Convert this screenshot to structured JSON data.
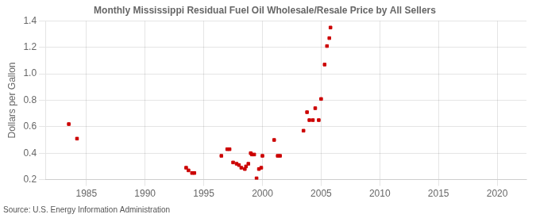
{
  "chart_data": {
    "type": "scatter",
    "title": "Monthly Mississippi Residual Fuel Oil Wholesale/Resale Price by All Sellers",
    "ylabel": "Dollars per Gallon",
    "source": "Source: U.S. Energy Information Administration",
    "color": "#cc0000",
    "marker": "square",
    "grid": true,
    "xlim": [
      1981.5,
      2022.5
    ],
    "ylim": [
      0.2,
      1.4
    ],
    "xticks": [
      1985,
      1990,
      1995,
      2000,
      2005,
      2010,
      2015,
      2020
    ],
    "yticks": [
      0.2,
      0.4,
      0.6,
      0.8,
      {
        "value": 1.0,
        "label": "1.0"
      },
      1.2,
      1.4
    ],
    "x": [
      1983.5,
      1984.2,
      1993.5,
      1993.7,
      1994.0,
      1994.2,
      1996.5,
      1997.0,
      1997.2,
      1997.5,
      1997.8,
      1998.0,
      1998.2,
      1998.5,
      1998.6,
      1998.8,
      1999.0,
      1999.1,
      1999.3,
      1999.5,
      1999.7,
      1999.9,
      2000.0,
      2001.0,
      2001.3,
      2001.5,
      2003.5,
      2003.8,
      2004.0,
      2004.3,
      2004.5,
      2004.8,
      2005.0,
      2005.3,
      2005.5,
      2005.7,
      2005.8
    ],
    "values": [
      0.62,
      0.51,
      0.29,
      0.27,
      0.25,
      0.25,
      0.38,
      0.43,
      0.43,
      0.33,
      0.32,
      0.31,
      0.29,
      0.28,
      0.3,
      0.32,
      0.4,
      0.39,
      0.39,
      0.21,
      0.28,
      0.29,
      0.38,
      0.5,
      0.38,
      0.38,
      0.57,
      0.71,
      0.65,
      0.65,
      0.74,
      0.65,
      0.81,
      1.07,
      1.21,
      1.27,
      1.35
    ]
  }
}
